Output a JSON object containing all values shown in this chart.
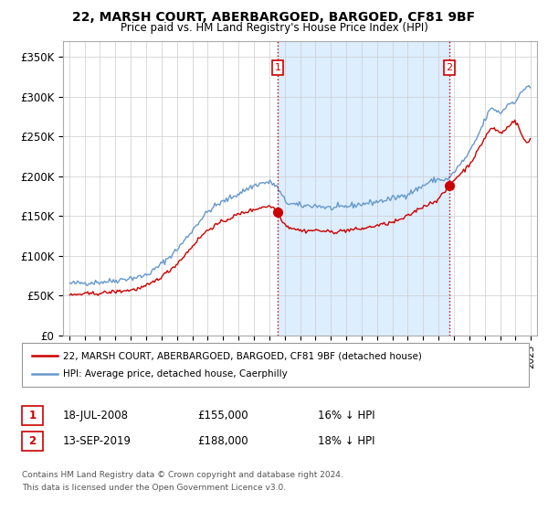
{
  "title": "22, MARSH COURT, ABERBARGOED, BARGOED, CF81 9BF",
  "subtitle": "Price paid vs. HM Land Registry's House Price Index (HPI)",
  "legend_line1": "22, MARSH COURT, ABERBARGOED, BARGOED, CF81 9BF (detached house)",
  "legend_line2": "HPI: Average price, detached house, Caerphilly",
  "sale1_date": "18-JUL-2008",
  "sale1_price": 155000,
  "sale1_hpi": "16% ↓ HPI",
  "sale2_date": "13-SEP-2019",
  "sale2_price": 188000,
  "sale2_hpi": "18% ↓ HPI",
  "footer1": "Contains HM Land Registry data © Crown copyright and database right 2024.",
  "footer2": "This data is licensed under the Open Government Licence v3.0.",
  "hpi_color": "#6699cc",
  "sale_color": "#cc0000",
  "shade_color": "#ddeeff",
  "background_color": "#ffffff",
  "grid_color": "#cccccc",
  "ylim": [
    0,
    370000
  ],
  "yticks": [
    0,
    50000,
    100000,
    150000,
    200000,
    250000,
    300000,
    350000
  ],
  "ytick_labels": [
    "£0",
    "£50K",
    "£100K",
    "£150K",
    "£200K",
    "£250K",
    "£300K",
    "£350K"
  ],
  "sale1_x": 2008.54,
  "sale2_x": 2019.71,
  "xlim_left": 1994.6,
  "xlim_right": 2025.4
}
